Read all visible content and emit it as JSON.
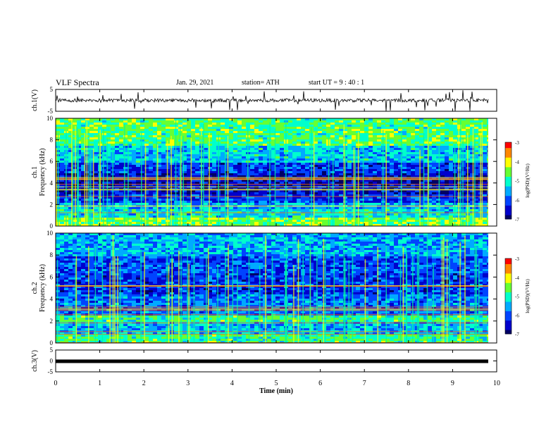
{
  "header": {
    "title": "VLF Spectra",
    "date": "Jan. 29, 2021",
    "station": "station= ATH",
    "start": "start  UT =   9 : 40 : 1"
  },
  "colors": {
    "waveform": "#000000",
    "colormap": [
      "#000066",
      "#0000cc",
      "#0044ff",
      "#00aaff",
      "#00ffcc",
      "#66ff33",
      "#ffff00",
      "#ff8800",
      "#ff0000",
      "#ffffff"
    ]
  },
  "chart_data": [
    {
      "type": "line",
      "panel": "ch1-waveform",
      "ylabel": "ch.1(V)",
      "ylim": [
        -5,
        5
      ],
      "yticks": [
        "5",
        "-5"
      ],
      "trace_level": 0,
      "trace_spike_range": [
        -5,
        5
      ]
    },
    {
      "type": "heatmap",
      "panel": "ch1-spectrogram",
      "ylabel_line1": "ch.1",
      "ylabel_line2": "Frequency (kHz)",
      "ylim": [
        0,
        10
      ],
      "yticks": [
        "0",
        "2",
        "4",
        "6",
        "8",
        "10"
      ],
      "colorbar": {
        "label": "log(PSD)(V²/Hz)",
        "ticks": [
          "-3",
          "-4",
          "-5",
          "-6",
          "-7"
        ],
        "range": [
          -7,
          -3
        ]
      },
      "bands": [
        {
          "from_khz": 0,
          "to_khz": 0.9,
          "level": 0.62
        },
        {
          "from_khz": 0.9,
          "to_khz": 1.6,
          "level": 0.45
        },
        {
          "from_khz": 1.6,
          "to_khz": 2.3,
          "level": 0.38
        },
        {
          "from_khz": 2.3,
          "to_khz": 3.0,
          "level": 0.22
        },
        {
          "from_khz": 3.0,
          "to_khz": 5.0,
          "level": 0.12
        },
        {
          "from_khz": 5.0,
          "to_khz": 6.0,
          "level": 0.2
        },
        {
          "from_khz": 6.0,
          "to_khz": 7.5,
          "level": 0.42
        },
        {
          "from_khz": 7.5,
          "to_khz": 10,
          "level": 0.58
        }
      ]
    },
    {
      "type": "heatmap",
      "panel": "ch2-spectrogram",
      "ylabel_line1": "ch.2",
      "ylabel_line2": "Frequency (kHz)",
      "ylim": [
        0,
        10
      ],
      "yticks": [
        "0",
        "2",
        "4",
        "6",
        "8",
        "10"
      ],
      "colorbar": {
        "label": "log(PSD)(V²/Hz)",
        "ticks": [
          "-3",
          "-4",
          "-5",
          "-6",
          "-7"
        ],
        "range": [
          -7,
          -3
        ]
      },
      "bands": [
        {
          "from_khz": 0,
          "to_khz": 0.9,
          "level": 0.55
        },
        {
          "from_khz": 0.9,
          "to_khz": 2.1,
          "level": 0.4
        },
        {
          "from_khz": 2.1,
          "to_khz": 2.6,
          "level": 0.55
        },
        {
          "from_khz": 2.6,
          "to_khz": 4.5,
          "level": 0.3
        },
        {
          "from_khz": 4.5,
          "to_khz": 6.5,
          "level": 0.2
        },
        {
          "from_khz": 6.5,
          "to_khz": 8.0,
          "level": 0.25
        },
        {
          "from_khz": 8.0,
          "to_khz": 10,
          "level": 0.38
        }
      ]
    },
    {
      "type": "line",
      "panel": "ch3-waveform",
      "ylabel": "ch.3(V)",
      "ylim": [
        -5,
        5
      ],
      "yticks": [
        "5",
        "0",
        "-5"
      ],
      "trace_level": 0,
      "xlabel": "Time (min)",
      "xlim": [
        0,
        10
      ],
      "xticks": [
        "0",
        "1",
        "2",
        "3",
        "4",
        "5",
        "6",
        "7",
        "8",
        "9",
        "10"
      ]
    }
  ]
}
